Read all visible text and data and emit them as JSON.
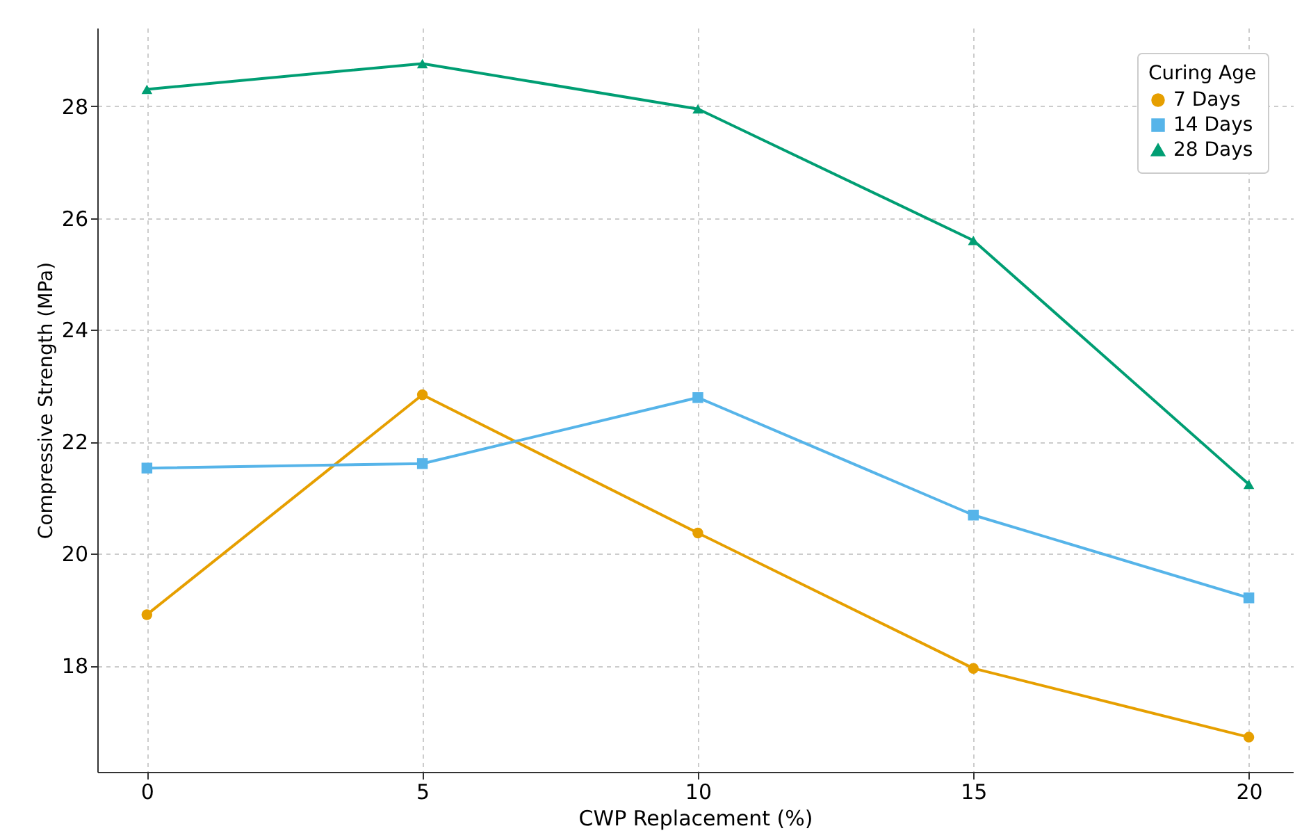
{
  "chart_data": {
    "type": "line",
    "xlabel": "CWP Replacement (%)",
    "ylabel": "Compressive Strength (MPa)",
    "legend_title": "Curing Age",
    "x": [
      0,
      5,
      10,
      15,
      20
    ],
    "series": [
      {
        "name": "7 Days",
        "color": "#e69f00",
        "marker": "circle",
        "values": [
          18.91,
          22.84,
          20.37,
          17.95,
          16.72
        ]
      },
      {
        "name": "14 Days",
        "color": "#56b4e9",
        "marker": "square",
        "values": [
          21.53,
          21.61,
          22.79,
          20.69,
          19.21
        ]
      },
      {
        "name": "28 Days",
        "color": "#009e73",
        "marker": "triangle",
        "values": [
          28.3,
          28.76,
          27.95,
          25.6,
          21.24
        ]
      }
    ],
    "xlim": [
      -0.9,
      20.8
    ],
    "xticks": [
      0,
      5,
      10,
      15,
      20
    ],
    "ylim": [
      16.1,
      29.4
    ],
    "yticks": [
      18,
      20,
      22,
      24,
      26,
      28
    ],
    "grid": true,
    "legend": "top right",
    "line_style": "solid"
  }
}
